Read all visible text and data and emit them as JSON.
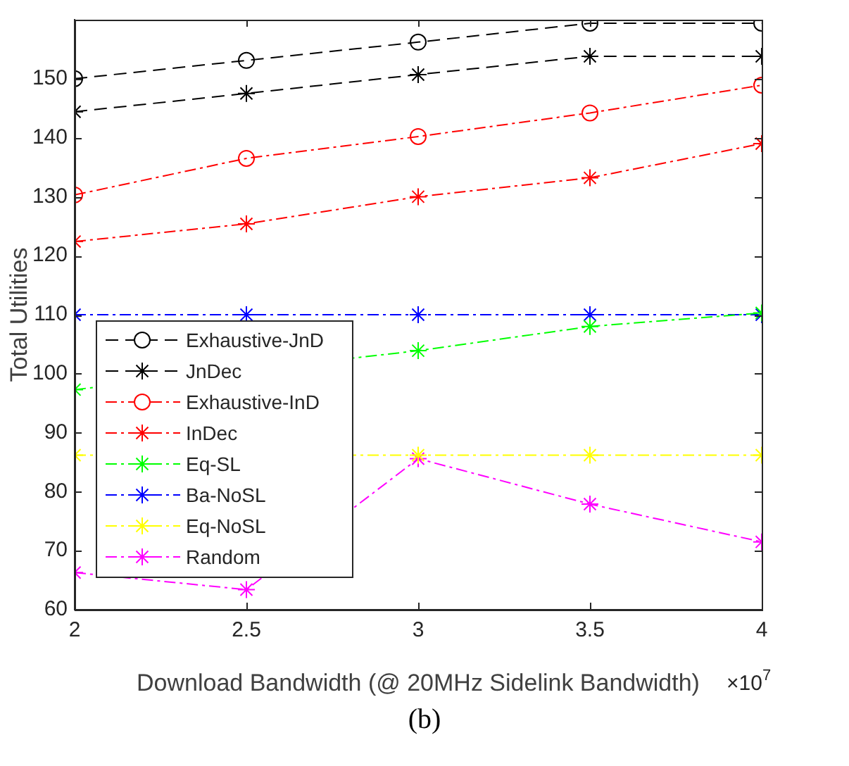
{
  "chart_data": {
    "type": "line",
    "xlabel": "Download Bandwidth (@ 20MHz Sidelink Bandwidth)",
    "ylabel": "Total Utilities",
    "x": [
      2,
      2.5,
      3,
      3.5,
      4
    ],
    "xlim": [
      2,
      4
    ],
    "xticks": [
      2,
      2.5,
      3,
      3.5,
      4
    ],
    "ylim": [
      60,
      160
    ],
    "yticks": [
      60,
      70,
      80,
      90,
      100,
      110,
      120,
      130,
      140,
      150
    ],
    "grid": false,
    "legend": "left",
    "annotations": [
      "×10$^{7}$",
      "(b)"
    ],
    "series": [
      {
        "name": "Exhaustive-JnD",
        "color": "#000000",
        "marker": "circle",
        "line_style": "dashed",
        "values": [
          150.0,
          153.1,
          156.2,
          159.4,
          159.4
        ]
      },
      {
        "name": "JnDec",
        "color": "#000000",
        "marker": "cross",
        "line_style": "dashed",
        "values": [
          144.4,
          147.5,
          150.7,
          153.8,
          153.8
        ]
      },
      {
        "name": "Exhaustive-InD",
        "color": "#ff0000",
        "marker": "circle",
        "line_style": "dashdot",
        "values": [
          130.3,
          136.5,
          140.2,
          144.2,
          148.9
        ]
      },
      {
        "name": "InDec",
        "color": "#ff0000",
        "marker": "cross",
        "line_style": "dashdot",
        "values": [
          122.4,
          125.4,
          130.0,
          133.2,
          139.0
        ]
      },
      {
        "name": "Eq-SL",
        "color": "#00ff00",
        "marker": "cross",
        "line_style": "dashdot",
        "values": [
          97.3,
          null,
          103.9,
          108.0,
          110.3
        ]
      },
      {
        "name": "Ba-NoSL",
        "color": "#0000ff",
        "marker": "cross",
        "line_style": "dashdot",
        "values": [
          110,
          110,
          110,
          110,
          110
        ]
      },
      {
        "name": "Eq-NoSL",
        "color": "#ffff00",
        "marker": "cross",
        "line_style": "dashdot",
        "values": [
          86.2,
          null,
          86.2,
          86.2,
          86.2
        ]
      },
      {
        "name": "Random",
        "color": "#ff00ff",
        "marker": "cross",
        "line_style": "dashdot",
        "values": [
          66.3,
          63.4,
          85.6,
          77.9,
          71.5
        ]
      }
    ]
  }
}
